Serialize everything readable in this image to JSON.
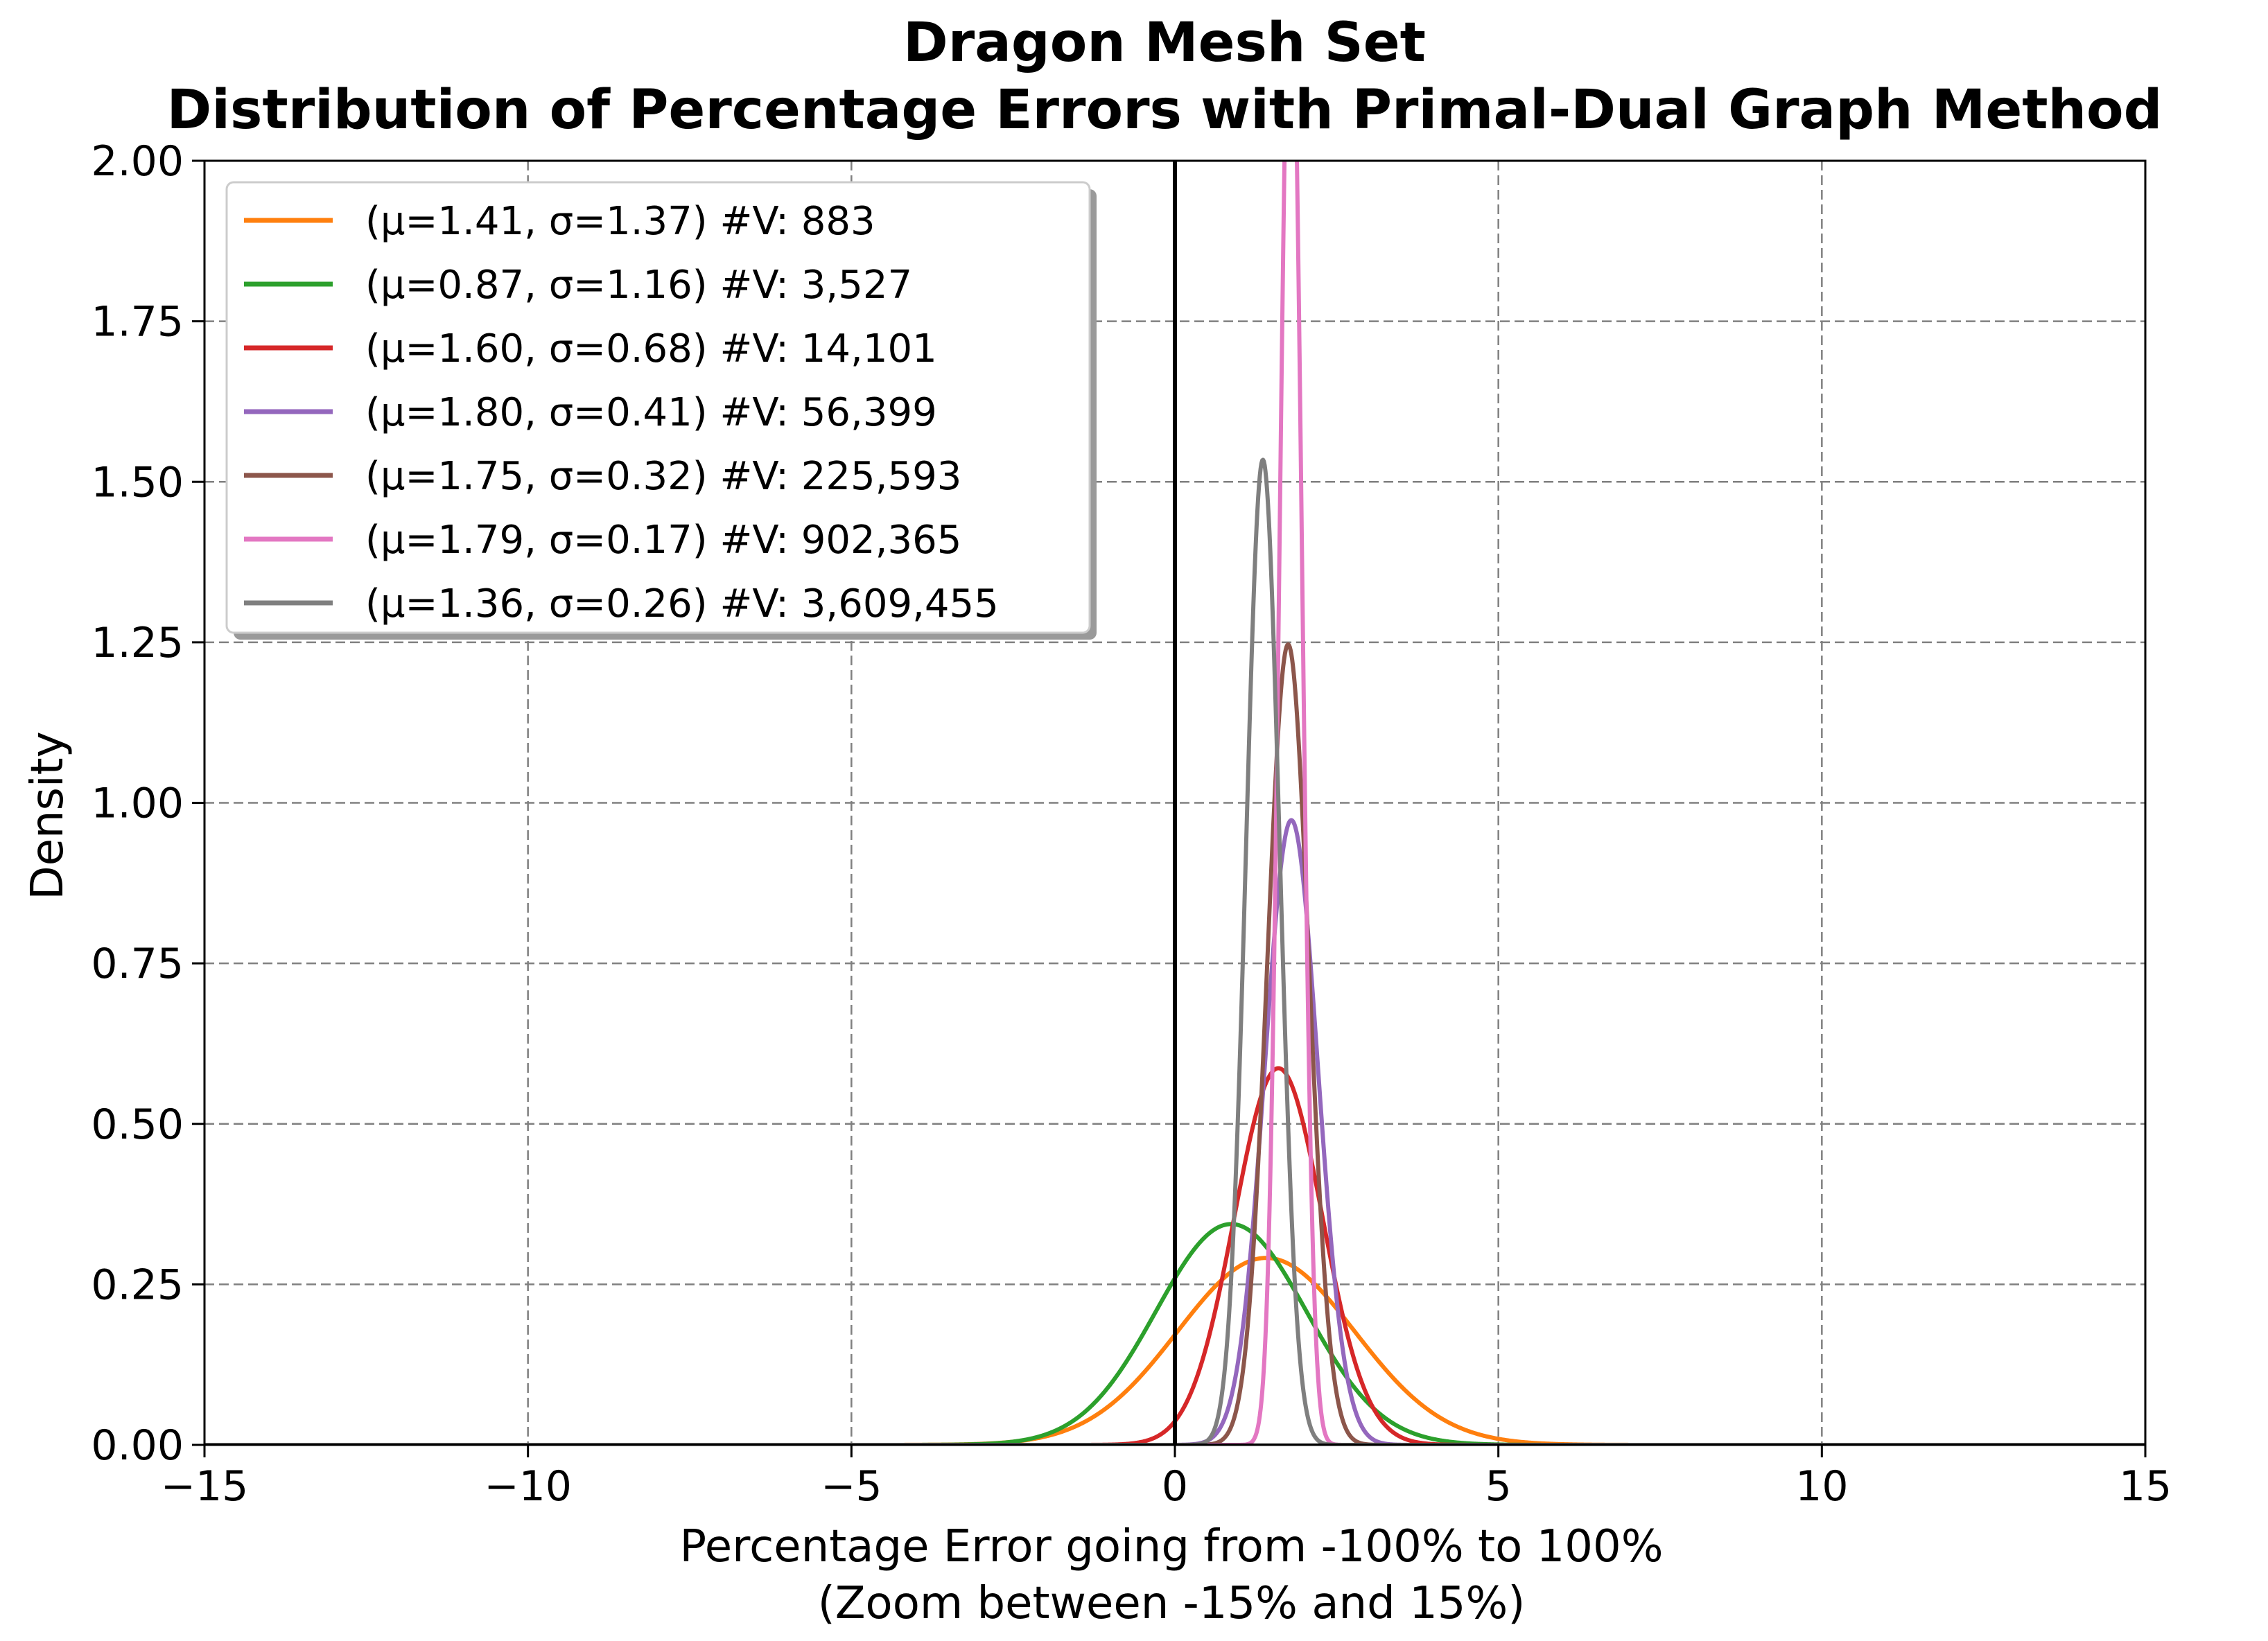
{
  "chart_data": {
    "type": "line",
    "title_line1": "Dragon Mesh Set",
    "title_line2": "Distribution of Percentage Errors with Primal-Dual Graph Method",
    "xlabel_line1": "Percentage Error going from -100% to 100%",
    "xlabel_line2": "(Zoom between -15% and 15%)",
    "ylabel": "Density",
    "xlim": [
      -15,
      15
    ],
    "ylim": [
      0,
      2
    ],
    "xticks": [
      -15,
      -10,
      -5,
      0,
      5,
      10,
      15
    ],
    "xtick_labels": [
      "−15",
      "−10",
      "−5",
      "0",
      "5",
      "10",
      "15"
    ],
    "yticks": [
      0,
      0.25,
      0.5,
      0.75,
      1.0,
      1.25,
      1.5,
      1.75,
      2.0
    ],
    "ytick_labels": [
      "0.00",
      "0.25",
      "0.50",
      "0.75",
      "1.00",
      "1.25",
      "1.50",
      "1.75",
      "2.00"
    ],
    "grid": true,
    "vertical_reference_x": 0,
    "legend_position": "top-left",
    "series": [
      {
        "name": "(μ=1.41, σ=1.37) #V: 883",
        "mu": 1.41,
        "sigma": 1.37,
        "color": "#ff7f0e"
      },
      {
        "name": "(μ=0.87, σ=1.16) #V: 3,527",
        "mu": 0.87,
        "sigma": 1.16,
        "color": "#2ca02c"
      },
      {
        "name": "(μ=1.60, σ=0.68) #V: 14,101",
        "mu": 1.6,
        "sigma": 0.68,
        "color": "#d62728"
      },
      {
        "name": "(μ=1.80, σ=0.41) #V: 56,399",
        "mu": 1.8,
        "sigma": 0.41,
        "color": "#9467bd"
      },
      {
        "name": "(μ=1.75, σ=0.32) #V: 225,593",
        "mu": 1.75,
        "sigma": 0.32,
        "color": "#8c564b"
      },
      {
        "name": "(μ=1.79, σ=0.17) #V: 902,365",
        "mu": 1.79,
        "sigma": 0.17,
        "color": "#e377c2"
      },
      {
        "name": "(μ=1.36, σ=0.26) #V: 3,609,455",
        "mu": 1.36,
        "sigma": 0.26,
        "color": "#7f7f7f"
      }
    ]
  }
}
